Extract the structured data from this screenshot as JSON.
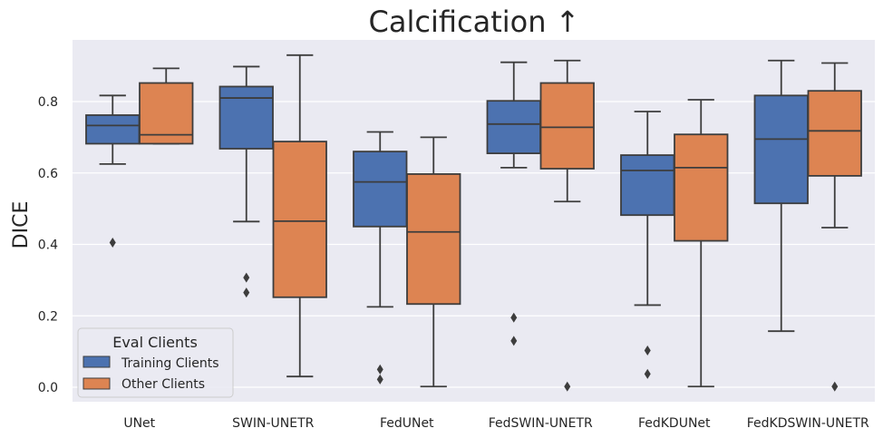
{
  "chart_data": {
    "type": "box",
    "title": "Calcification ↑",
    "xlabel": "",
    "ylabel": "DICE",
    "ylim": [
      -0.04,
      0.97
    ],
    "yticks": [
      "0.0",
      "0.2",
      "0.4",
      "0.6",
      "0.8"
    ],
    "grid": true,
    "categories": [
      "UNet",
      "SWIN-UNETR",
      "FedUNet",
      "FedSWIN-UNETR",
      "FedKDUNet",
      "FedKDSWIN-UNETR"
    ],
    "legend": {
      "title": "Eval Clients",
      "position": "lower-left",
      "entries": [
        "Training Clients",
        "Other Clients"
      ]
    },
    "series": [
      {
        "name": "Training Clients",
        "color": "#4c72b0",
        "boxes": [
          {
            "whisker_low": 0.625,
            "q1": 0.682,
            "median": 0.733,
            "q3": 0.762,
            "whisker_high": 0.817,
            "outliers": [
              0.405
            ]
          },
          {
            "whisker_low": 0.464,
            "q1": 0.668,
            "median": 0.81,
            "q3": 0.842,
            "whisker_high": 0.898,
            "outliers": [
              0.307,
              0.265
            ]
          },
          {
            "whisker_low": 0.225,
            "q1": 0.45,
            "median": 0.575,
            "q3": 0.66,
            "whisker_high": 0.715,
            "outliers": [
              0.05,
              0.022
            ]
          },
          {
            "whisker_low": 0.615,
            "q1": 0.655,
            "median": 0.737,
            "q3": 0.802,
            "whisker_high": 0.91,
            "outliers": [
              0.195,
              0.13
            ]
          },
          {
            "whisker_low": 0.23,
            "q1": 0.482,
            "median": 0.607,
            "q3": 0.65,
            "whisker_high": 0.772,
            "outliers": [
              0.103,
              0.037
            ]
          },
          {
            "whisker_low": 0.157,
            "q1": 0.515,
            "median": 0.695,
            "q3": 0.817,
            "whisker_high": 0.915,
            "outliers": []
          }
        ]
      },
      {
        "name": "Other Clients",
        "color": "#dd8452",
        "boxes": [
          {
            "whisker_low": 0.682,
            "q1": 0.682,
            "median": 0.707,
            "q3": 0.852,
            "whisker_high": 0.893,
            "outliers": []
          },
          {
            "whisker_low": 0.03,
            "q1": 0.252,
            "median": 0.465,
            "q3": 0.688,
            "whisker_high": 0.93,
            "outliers": []
          },
          {
            "whisker_low": 0.002,
            "q1": 0.233,
            "median": 0.435,
            "q3": 0.597,
            "whisker_high": 0.7,
            "outliers": []
          },
          {
            "whisker_low": 0.52,
            "q1": 0.612,
            "median": 0.728,
            "q3": 0.852,
            "whisker_high": 0.915,
            "outliers": [
              0.002
            ]
          },
          {
            "whisker_low": 0.002,
            "q1": 0.41,
            "median": 0.615,
            "q3": 0.708,
            "whisker_high": 0.805,
            "outliers": []
          },
          {
            "whisker_low": 0.447,
            "q1": 0.592,
            "median": 0.718,
            "q3": 0.83,
            "whisker_high": 0.908,
            "outliers": [
              0.002
            ]
          }
        ]
      }
    ]
  }
}
